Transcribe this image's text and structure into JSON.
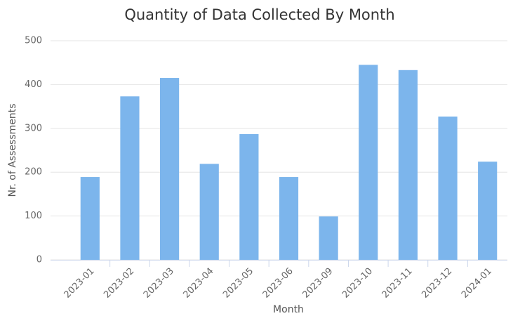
{
  "chart_data": {
    "type": "bar",
    "title": "Quantity of Data Collected By Month",
    "x_label": "Month",
    "y_label": "Nr. of Assessments",
    "categories": [
      "2023-01",
      "2023-02",
      "2023-03",
      "2023-04",
      "2023-05",
      "2023-06",
      "2023-09",
      "2023-10",
      "2023-11",
      "2023-12",
      "2024-01"
    ],
    "values": [
      189,
      373,
      415,
      219,
      287,
      189,
      99,
      445,
      433,
      327,
      224
    ],
    "color": "#7cb5ec",
    "ylim": [
      0,
      500
    ],
    "yticks": [
      0,
      100,
      200,
      300,
      400,
      500
    ],
    "grid": true
  }
}
